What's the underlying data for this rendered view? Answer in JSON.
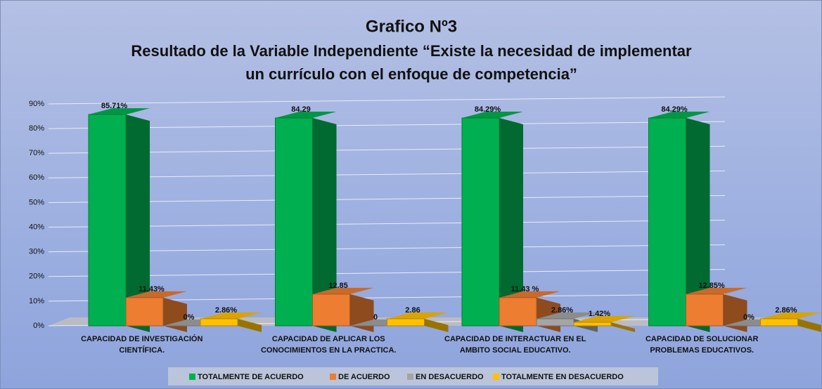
{
  "chart_data": {
    "type": "bar3d",
    "title": "Grafico Nº3",
    "subtitle": [
      "Resultado de la Variable Independiente “Existe la necesidad de implementar",
      "un currículo con el enfoque de competencia”"
    ],
    "categories": [
      "CAPACIDAD DE INVESTIGACIÓN CIENTÍFICA.",
      "CAPACIDAD DE APLICAR LOS CONOCIMIENTOS EN LA PRACTICA.",
      "CAPACIDAD DE INTERACTUAR EN EL AMBITO SOCIAL EDUCATIVO.",
      "CAPACIDAD DE SOLUCIONAR PROBLEMAS EDUCATIVOS."
    ],
    "series": [
      {
        "name": "TOTALMENTE DE ACUERDO",
        "color": "#00b050",
        "values": [
          85.71,
          84.29,
          84.29,
          84.29
        ],
        "value_labels": [
          "85.71%",
          "84.29",
          "84.29%",
          "84.29%"
        ]
      },
      {
        "name": "DE ACUERDO",
        "color": "#ed7d31",
        "values": [
          11.43,
          12.85,
          11.43,
          12.85
        ],
        "value_labels": [
          "11.43%",
          "12.85",
          "11.43  %",
          "12.85%"
        ]
      },
      {
        "name": "EN DESACUERDO",
        "color": "#a5a5a5",
        "values": [
          0,
          0,
          2.86,
          0
        ],
        "value_labels": [
          "0%",
          "0",
          "2.86%",
          "0%"
        ]
      },
      {
        "name": "TOTALMENTE EN DESACUERDO",
        "color": "#ffc000",
        "values": [
          2.86,
          2.86,
          1.42,
          2.86
        ],
        "value_labels": [
          "2.86%",
          "2.86",
          "1.42%",
          "2.86%"
        ]
      }
    ],
    "ylim": [
      0,
      90
    ],
    "yticks": [
      {
        "value": 0,
        "label": "0%"
      },
      {
        "value": 10,
        "label": "10%"
      },
      {
        "value": 20,
        "label": "20%"
      },
      {
        "value": 30,
        "label": "30%"
      },
      {
        "value": 40,
        "label": "40%"
      },
      {
        "value": 50,
        "label": "50%"
      },
      {
        "value": 60,
        "label": "60%"
      },
      {
        "value": 70,
        "label": "70%"
      },
      {
        "value": 80,
        "label": "80%"
      },
      {
        "value": 90,
        "label": "90%"
      }
    ],
    "grid": true,
    "legend": "bottom"
  }
}
